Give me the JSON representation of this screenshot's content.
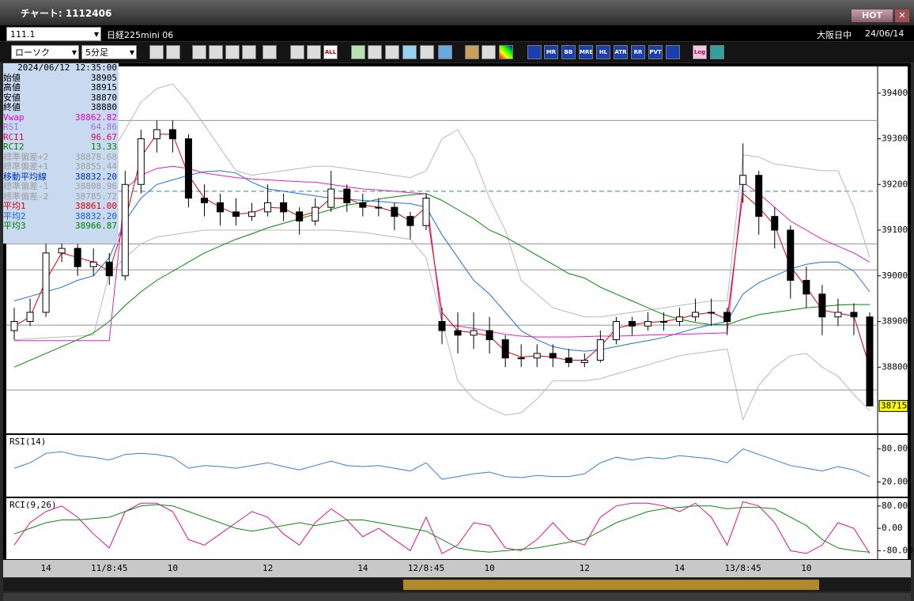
{
  "window": {
    "title": "チャート: 1112406",
    "hot": "HOT"
  },
  "toolbar": {
    "symbol": "111.1",
    "instrument": "日経225mini 06",
    "market": "大阪日中",
    "date": "24/06/14",
    "chart_style": "ローソク",
    "interval": "5分足",
    "icons": [
      "ALL",
      "MR",
      "BB",
      "MRE",
      "HL",
      "ATR",
      "RR",
      "PVT",
      "Log"
    ]
  },
  "info_panel": {
    "datetime": "2024/06/12  12:35:00",
    "rows": [
      {
        "label": "始値",
        "value": "38905",
        "color": "#000000"
      },
      {
        "label": "高値",
        "value": "38915",
        "color": "#000000"
      },
      {
        "label": "安値",
        "value": "38870",
        "color": "#000000"
      },
      {
        "label": "終値",
        "value": "38880",
        "color": "#000000"
      },
      {
        "label": "Vwap",
        "value": "38862.82",
        "color": "#e000c0"
      },
      {
        "label": "RSI",
        "value": "64.86",
        "color": "#a070e0"
      },
      {
        "label": "RCI1",
        "value": "96.67",
        "color": "#e00060"
      },
      {
        "label": "RCI2",
        "value": "13.33",
        "color": "#008000"
      },
      {
        "label": "標準偏差+2",
        "value": "38878.68",
        "color": "#a0a0a0"
      },
      {
        "label": "標準偏差+1",
        "value": "38855.44",
        "color": "#a0a0a0"
      },
      {
        "label": "移動平均線",
        "value": "38832.20",
        "color": "#0030c0"
      },
      {
        "label": "標準偏差-1",
        "value": "38808.96",
        "color": "#a0a0a0"
      },
      {
        "label": "標準偏差-2",
        "value": "38785.72",
        "color": "#a0a0a0"
      },
      {
        "label": "平均1",
        "value": "38861.00",
        "color": "#e00000"
      },
      {
        "label": "平均2",
        "value": "38832.20",
        "color": "#1060e0"
      },
      {
        "label": "平均3",
        "value": "38966.87",
        "color": "#008000"
      }
    ]
  },
  "chart_data": [
    {
      "type": "candlestick",
      "categories": [
        null,
        null,
        "14",
        null,
        null,
        null,
        "11/8:45",
        null,
        null,
        null,
        "10",
        null,
        null,
        null,
        null,
        null,
        "12",
        null,
        null,
        null,
        null,
        null,
        "14",
        null,
        null,
        null,
        "12/8:45",
        null,
        null,
        null,
        "10",
        null,
        null,
        null,
        null,
        null,
        "12",
        null,
        null,
        null,
        null,
        null,
        "14",
        null,
        null,
        null,
        "13/8:45",
        null,
        null,
        null,
        "10",
        null,
        null,
        null,
        null
      ],
      "open": [
        38880,
        38900,
        38920,
        39050,
        39060,
        39020,
        39030,
        39000,
        39200,
        39300,
        39320,
        39300,
        39170,
        39160,
        39140,
        39130,
        39140,
        39160,
        39140,
        39120,
        39150,
        39190,
        39160,
        39150,
        39150,
        39130,
        39110,
        38900,
        38880,
        38870,
        38880,
        38860,
        38820,
        38820,
        38830,
        38820,
        38810,
        38815,
        38860,
        38900,
        38890,
        38900,
        38900,
        38910,
        38920,
        38920,
        39200,
        39220,
        39130,
        39100,
        38990,
        38960,
        38910,
        38920,
        38910
      ],
      "high": [
        38930,
        38950,
        39080,
        39090,
        39070,
        39060,
        39050,
        39230,
        39320,
        39340,
        39340,
        39310,
        39200,
        39180,
        39170,
        39160,
        39200,
        39180,
        39150,
        39170,
        39230,
        39200,
        39180,
        39170,
        39160,
        39140,
        39180,
        38930,
        38920,
        38920,
        38910,
        38870,
        38850,
        38850,
        38850,
        38840,
        38830,
        38880,
        38910,
        38910,
        38920,
        38920,
        38930,
        38950,
        38950,
        38930,
        39290,
        39230,
        39150,
        39110,
        39020,
        38980,
        38950,
        38940,
        38920
      ],
      "low": [
        38860,
        38890,
        38910,
        39030,
        39000,
        39000,
        38980,
        38990,
        39180,
        39270,
        39270,
        39150,
        39130,
        39110,
        39110,
        39120,
        39130,
        39120,
        39090,
        39110,
        39140,
        39140,
        39130,
        39130,
        39100,
        39080,
        39100,
        38850,
        38830,
        38840,
        38830,
        38800,
        38800,
        38800,
        38800,
        38800,
        38800,
        38810,
        38850,
        38870,
        38880,
        38880,
        38890,
        38900,
        38890,
        38870,
        39160,
        39090,
        39060,
        38950,
        38930,
        38870,
        38890,
        38870,
        38715
      ],
      "close": [
        38900,
        38920,
        39050,
        39060,
        39020,
        39030,
        39000,
        39200,
        39300,
        39320,
        39300,
        39170,
        39160,
        39140,
        39130,
        39140,
        39160,
        39140,
        39120,
        39150,
        39190,
        39160,
        39150,
        39150,
        39130,
        39110,
        39170,
        38880,
        38870,
        38880,
        38860,
        38820,
        38820,
        38830,
        38820,
        38810,
        38815,
        38860,
        38900,
        38890,
        38900,
        38900,
        38910,
        38920,
        38920,
        38900,
        39220,
        39130,
        39100,
        38990,
        38960,
        38910,
        38920,
        38910,
        38715
      ],
      "up_color": "#ffffff",
      "down_color": "#000000",
      "lines": [
        {
          "color": "#b8b8b8",
          "values": [
            39150,
            39165,
            39180,
            39195,
            39210,
            39225,
            39260,
            39320,
            39380,
            39410,
            39420,
            39380,
            39330,
            39280,
            39230,
            39220,
            39225,
            39230,
            39235,
            39240,
            39240,
            39235,
            39230,
            39225,
            39220,
            39215,
            39230,
            39300,
            39320,
            39260,
            39170,
            39100,
            38990,
            38960,
            38930,
            38920,
            38910,
            38910,
            38915,
            38920,
            38925,
            38930,
            38935,
            38940,
            38945,
            38945,
            39265,
            39260,
            39245,
            39240,
            39235,
            39230,
            39230,
            39150,
            39040
          ]
        },
        {
          "color": "#b8b8b8",
          "values": [
            38860,
            38862,
            38864,
            38866,
            38868,
            38870,
            39005,
            39040,
            39070,
            39085,
            39090,
            39095,
            39100,
            39100,
            39100,
            39100,
            39100,
            39100,
            39100,
            39100,
            39100,
            39098,
            39095,
            39090,
            39085,
            39080,
            39040,
            38900,
            38770,
            38730,
            38710,
            38695,
            38700,
            38730,
            38770,
            38770,
            38770,
            38775,
            38785,
            38795,
            38805,
            38815,
            38825,
            38830,
            38835,
            38840,
            38685,
            38760,
            38800,
            38825,
            38830,
            38800,
            38780,
            38740,
            38705
          ]
        },
        {
          "color": "#008a00",
          "values": [
            38800,
            38815,
            38830,
            38845,
            38860,
            38875,
            38900,
            38935,
            38965,
            38990,
            39010,
            39030,
            39050,
            39065,
            39080,
            39092,
            39105,
            39115,
            39125,
            39135,
            39145,
            39155,
            39160,
            39168,
            39173,
            39177,
            39180,
            39165,
            39145,
            39125,
            39100,
            39085,
            39065,
            39045,
            39025,
            39005,
            38995,
            38975,
            38960,
            38945,
            38930,
            38915,
            38905,
            38898,
            38893,
            38893,
            38905,
            38915,
            38920,
            38925,
            38930,
            38933,
            38936,
            38937,
            38937
          ]
        },
        {
          "color": "#1a6fe0",
          "values": [
            38945,
            38955,
            38965,
            38975,
            38990,
            39000,
            39040,
            39120,
            39170,
            39200,
            39210,
            39220,
            39228,
            39230,
            39225,
            39205,
            39190,
            39185,
            39180,
            39175,
            39170,
            39168,
            39165,
            39163,
            39160,
            39158,
            39150,
            39090,
            39040,
            38990,
            38960,
            38920,
            38880,
            38860,
            38845,
            38838,
            38835,
            38838,
            38845,
            38852,
            38858,
            38865,
            38875,
            38885,
            38893,
            38900,
            38960,
            38985,
            39000,
            39015,
            39025,
            39030,
            39030,
            39010,
            38965
          ]
        },
        {
          "color": "#e020c0",
          "values": [
            38858,
            38858,
            38858,
            38858,
            38858,
            38858,
            38858,
            39190,
            39220,
            39235,
            39240,
            39235,
            39225,
            39220,
            39215,
            39212,
            39210,
            39208,
            39206,
            39205,
            39200,
            39195,
            39190,
            39188,
            39185,
            39182,
            39180,
            38893,
            38890,
            38885,
            38878,
            38872,
            38868,
            38866,
            38866,
            38866,
            38867,
            38868,
            38868,
            38869,
            38870,
            38871,
            38872,
            38873,
            38874,
            38875,
            39205,
            39180,
            39150,
            39120,
            39100,
            39080,
            39065,
            39050,
            39030
          ]
        },
        {
          "color": "#e00000",
          "values": [
            38890,
            38910,
            38990,
            39050,
            39040,
            39030,
            39010,
            39120,
            39260,
            39310,
            39310,
            39220,
            39170,
            39150,
            39135,
            39138,
            39150,
            39148,
            39130,
            39140,
            39170,
            39170,
            39155,
            39150,
            39140,
            39120,
            39150,
            38920,
            38880,
            38875,
            38868,
            38835,
            38822,
            38825,
            38822,
            38815,
            38815,
            38845,
            38885,
            38893,
            38898,
            38900,
            38906,
            38915,
            38920,
            38905,
            39180,
            39150,
            39110,
            39020,
            38975,
            38925,
            38918,
            38912,
            38800
          ]
        }
      ],
      "hlines": [
        {
          "value": 39340,
          "color": "#909090",
          "dash": false
        },
        {
          "value": 39185,
          "color": "#2e8b8b",
          "dash": true
        },
        {
          "value": 39070,
          "color": "#909090",
          "dash": false
        },
        {
          "value": 39013,
          "color": "#909090",
          "dash": false
        },
        {
          "value": 38892,
          "color": "#909090",
          "dash": false
        },
        {
          "value": 38750,
          "color": "#909090",
          "dash": false
        }
      ],
      "last_color": "#ffff00",
      "ylim": [
        38655,
        39455
      ],
      "yticks": [
        38800,
        38900,
        39000,
        39100,
        39200,
        39300,
        39400
      ]
    },
    {
      "type": "line",
      "title": "RSI(14)",
      "series": [
        {
          "color": "#3a7ad8",
          "values": [
            45,
            55,
            72,
            75,
            68,
            65,
            60,
            70,
            72,
            70,
            65,
            45,
            50,
            48,
            45,
            50,
            55,
            48,
            42,
            50,
            58,
            50,
            48,
            50,
            45,
            40,
            55,
            25,
            30,
            35,
            38,
            30,
            28,
            32,
            30,
            30,
            35,
            55,
            65,
            60,
            65,
            62,
            68,
            65,
            62,
            55,
            80,
            70,
            60,
            50,
            45,
            40,
            48,
            42,
            30
          ]
        }
      ],
      "ylim": [
        -5,
        104
      ],
      "yticks": [
        {
          "value": 20,
          "label": "20.00"
        },
        {
          "value": 80,
          "label": "80.00"
        }
      ]
    },
    {
      "type": "line",
      "title": "RCI(9,26)",
      "series": [
        {
          "color": "#e0108a",
          "values": [
            -60,
            20,
            60,
            80,
            40,
            -20,
            -70,
            60,
            90,
            90,
            60,
            -40,
            -60,
            -20,
            20,
            60,
            40,
            -20,
            -60,
            20,
            70,
            30,
            -30,
            0,
            -40,
            -80,
            40,
            -90,
            -60,
            20,
            10,
            -70,
            -80,
            -40,
            20,
            -40,
            -60,
            40,
            80,
            90,
            90,
            80,
            60,
            90,
            40,
            -60,
            95,
            80,
            20,
            -80,
            -90,
            -60,
            20,
            0,
            -90
          ]
        },
        {
          "color": "#108a10",
          "values": [
            -20,
            0,
            20,
            30,
            30,
            35,
            40,
            60,
            80,
            85,
            80,
            60,
            40,
            20,
            0,
            -10,
            0,
            10,
            20,
            10,
            20,
            30,
            30,
            20,
            10,
            0,
            -10,
            -40,
            -70,
            -80,
            -85,
            -80,
            -75,
            -70,
            -60,
            -50,
            -40,
            -10,
            20,
            40,
            60,
            70,
            75,
            80,
            80,
            70,
            75,
            75,
            70,
            40,
            10,
            -40,
            -70,
            -80,
            -85
          ]
        }
      ],
      "ylim": [
        -110,
        105
      ],
      "yticks": [
        {
          "value": -80,
          "label": "-80.00"
        },
        {
          "value": 0,
          "label": "0.00"
        },
        {
          "value": 80,
          "label": "80.00"
        }
      ]
    }
  ]
}
